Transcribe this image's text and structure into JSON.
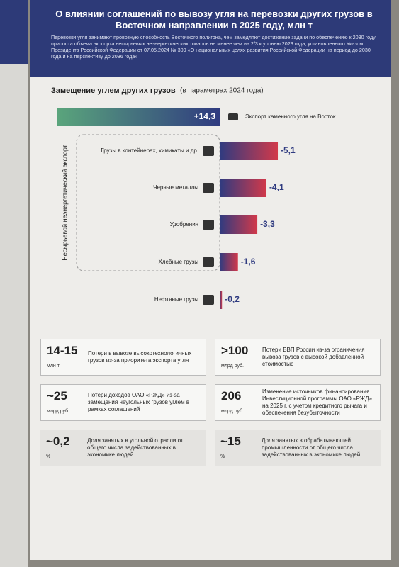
{
  "header": {
    "title": "О влиянии соглашений по вывозу угля на перевозки других грузов в Восточном направлении в 2025 году, млн т",
    "text": "Перевозки угля занимают провозную способность Восточного полигона, чем замедляют достижение задачи по обеспечению к 2030 году прироста объема экспорта несырьевых неэнергетических товаров не менее чем на 2/3 к уровню 2023 года, установленного Указом Президента Российской Федерации от 07.05.2024 № 309 «О национальных целях развития Российской Федерации на период до 2030 года и на перспективу до 2036 года»"
  },
  "chart_data": {
    "type": "diverging-bar",
    "title": "Замещение углем других грузов",
    "subtitle": "(в параметрах 2024 года)",
    "group_label": "Несырьевой неэнергетический экспорт",
    "categories": [
      "Экспорт каменного угля на Восток",
      "Грузы в контейнерах, химикаты и др.",
      "Черные металлы",
      "Удобрения",
      "Хлебные грузы",
      "Нефтяные грузы"
    ],
    "values": [
      14.3,
      -5.1,
      -4.1,
      -3.3,
      -1.6,
      -0.2
    ],
    "value_labels": [
      "+14,3",
      "-5,1",
      "-4,1",
      "-3,3",
      "-1,6",
      "-0,2"
    ],
    "positive_color": "#5aa57c",
    "negative_color": "#d2394a",
    "base_color": "#2f3b80"
  },
  "stats": [
    {
      "value": "14-15",
      "unit": "млн т",
      "text": "Потери в вывозе высокотехнологичных грузов из-за приоритета экспорта угля"
    },
    {
      "value": ">100",
      "unit": "млрд руб.",
      "text": "Потери ВВП России из-за ограничения вывоза грузов с высокой добавленной стоимостью"
    },
    {
      "value": "~25",
      "unit": "млрд руб.",
      "text": "Потери доходов ОАО «РЖД» из-за замещения неугольных грузов углем в рамках соглашений"
    },
    {
      "value": "206",
      "unit": "млрд руб.",
      "text": "Изменение источников финансирования Инвестиционной программы ОАО «РЖД» на 2025 г. с учетом кредитного рычага и обеспечения безубыточности"
    },
    {
      "value": "~0,2",
      "unit": "%",
      "text": "Доля занятых в угольной отрасли от общего числа задействованных в экономике людей"
    },
    {
      "value": "~15",
      "unit": "%",
      "text": "Доля занятых в обрабатывающей промышленности от общего числа задействованных в экономике людей"
    }
  ]
}
